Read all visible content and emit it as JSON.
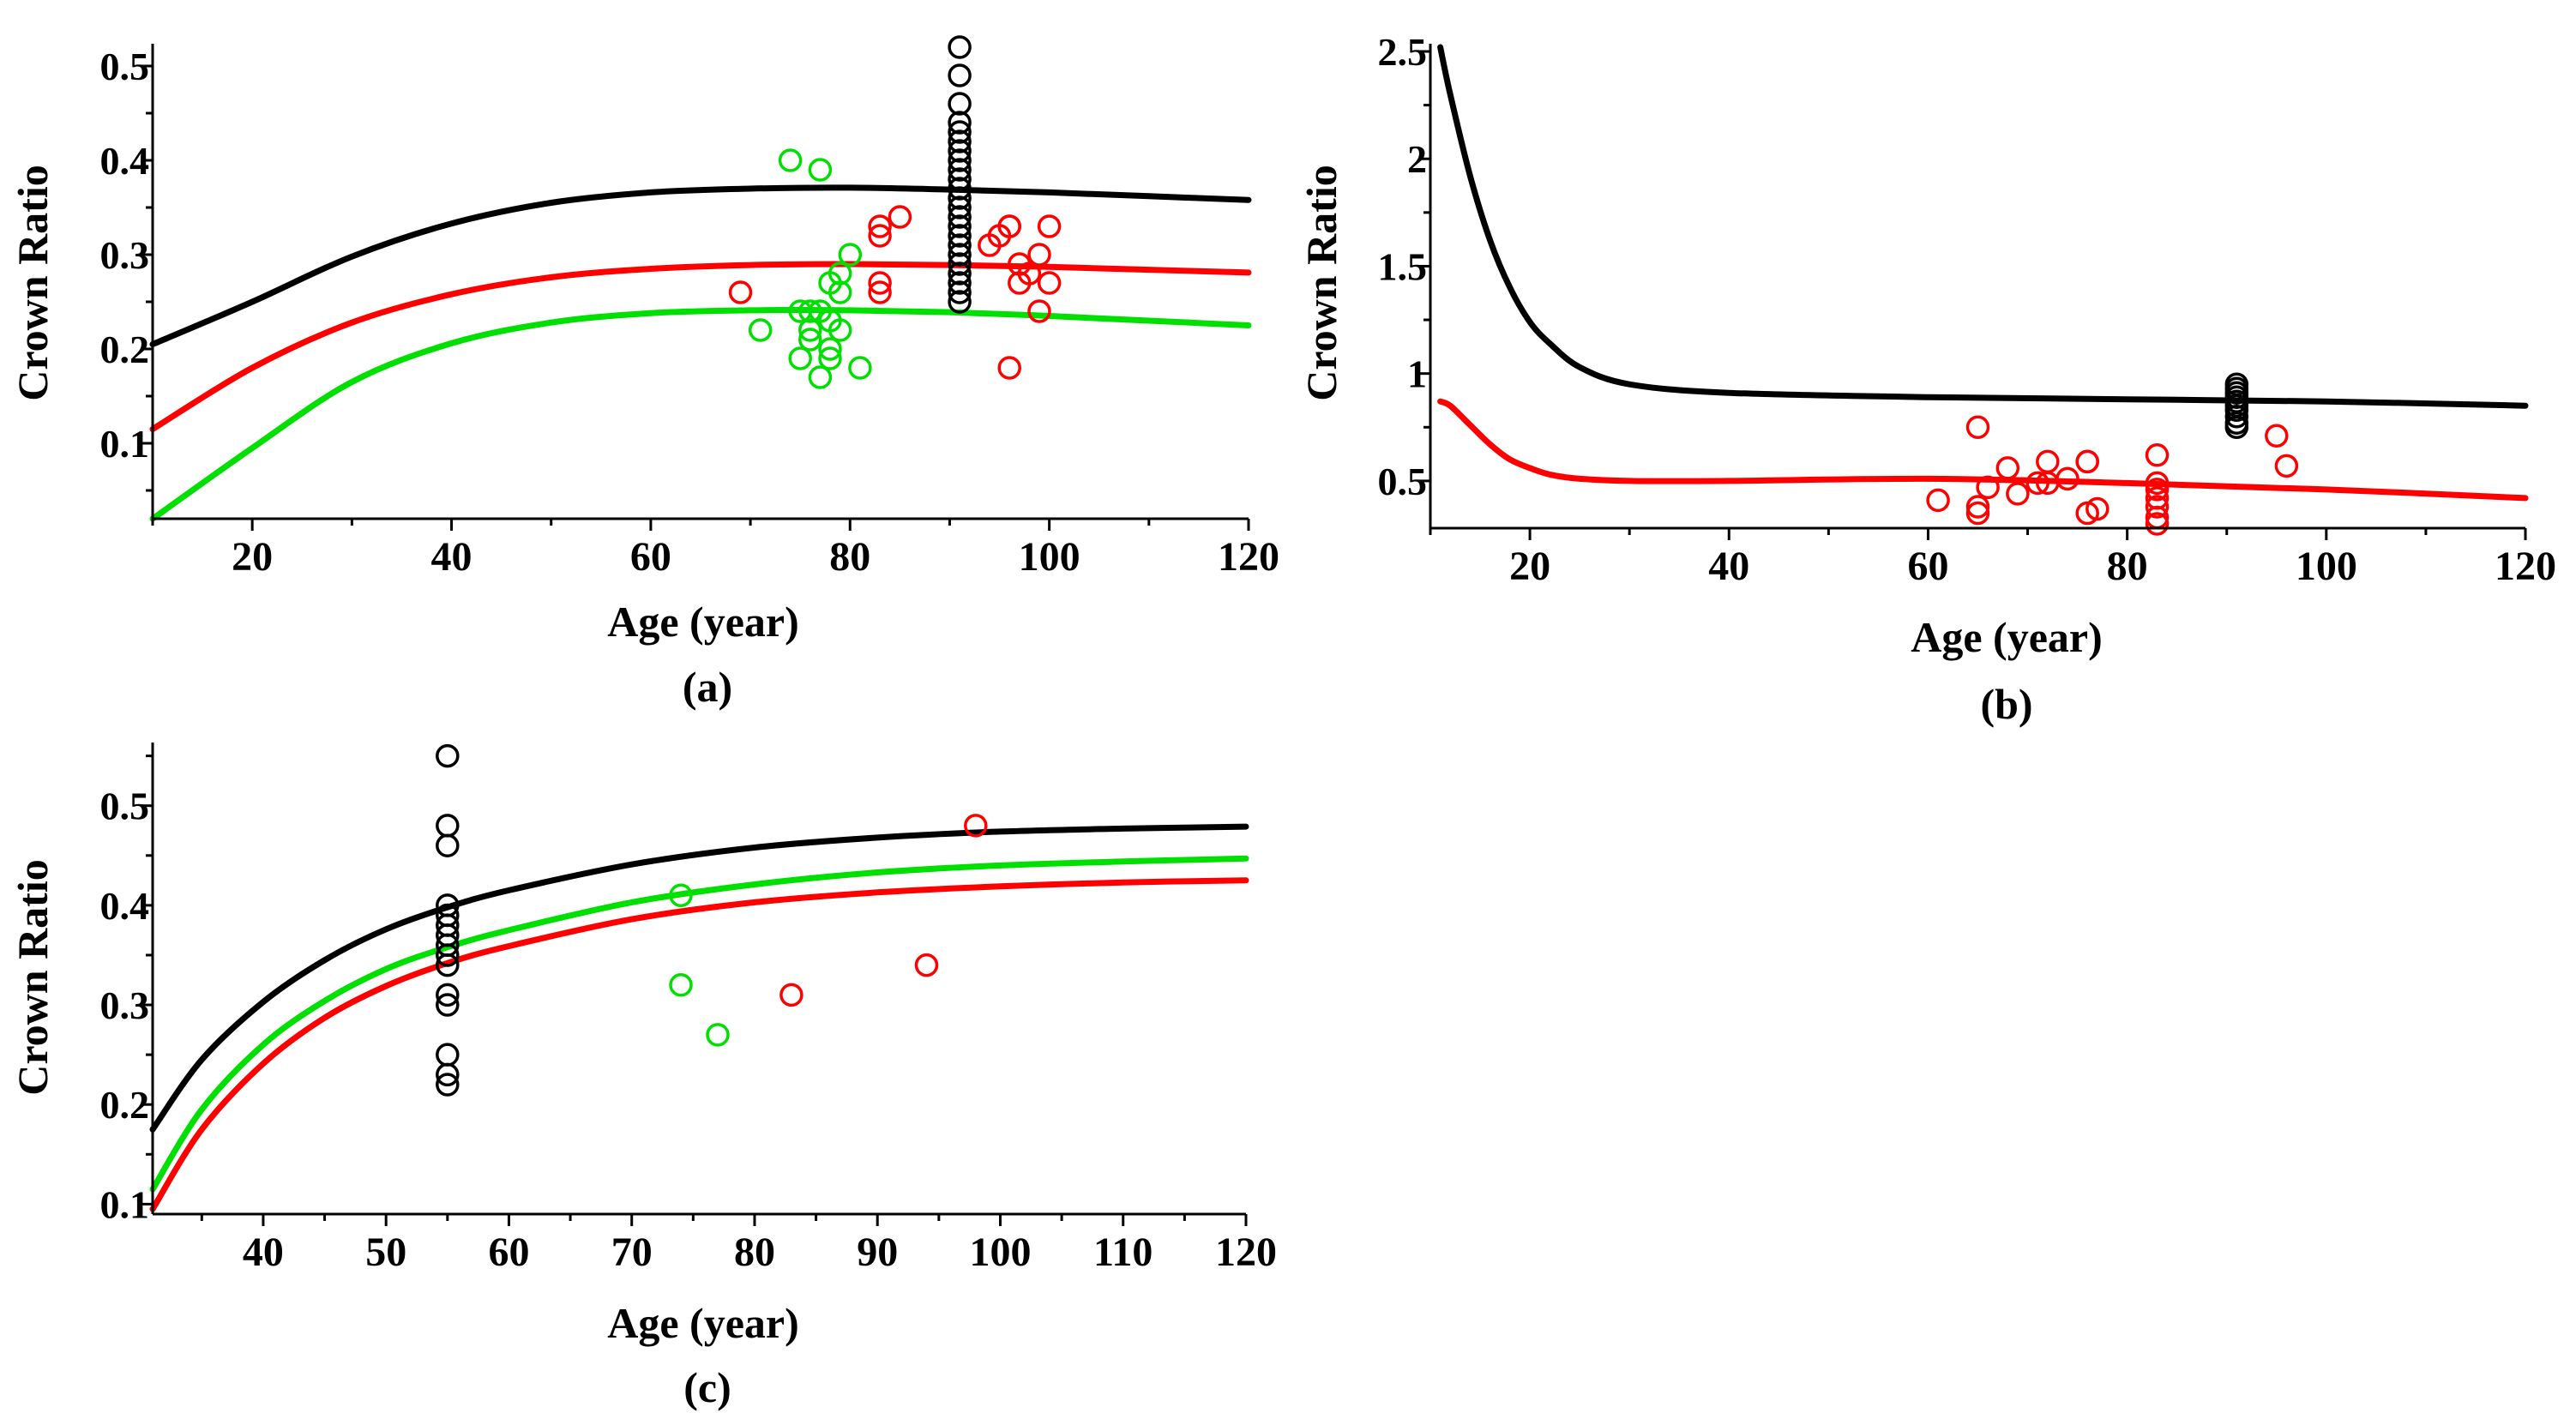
{
  "chart_data": [
    {
      "type": "scatter",
      "panel_label": "(a)",
      "xlabel": "Age (year)",
      "ylabel": "Crown Ratio",
      "xlim": [
        10,
        120
      ],
      "ylim": [
        0.02,
        0.52
      ],
      "x_ticks": [
        20,
        40,
        60,
        80,
        100,
        120
      ],
      "y_ticks": [
        0.1,
        0.2,
        0.3,
        0.4,
        0.5
      ],
      "y_tick_labels": [
        "0.1",
        "0.2",
        "0.3",
        "0.4",
        "0.5"
      ],
      "curves": [
        {
          "name": "black",
          "color": "#000000",
          "x": [
            10,
            20,
            30,
            40,
            50,
            60,
            70,
            80,
            90,
            100,
            110,
            120
          ],
          "y": [
            0.205,
            0.25,
            0.298,
            0.333,
            0.355,
            0.366,
            0.37,
            0.371,
            0.369,
            0.366,
            0.362,
            0.358
          ]
        },
        {
          "name": "red",
          "color": "#ff0000",
          "x": [
            10,
            20,
            30,
            40,
            50,
            60,
            70,
            80,
            90,
            100,
            110,
            120
          ],
          "y": [
            0.115,
            0.18,
            0.228,
            0.258,
            0.276,
            0.285,
            0.289,
            0.29,
            0.289,
            0.287,
            0.284,
            0.281
          ]
        },
        {
          "name": "green",
          "color": "#00e000",
          "x": [
            10,
            20,
            30,
            40,
            50,
            60,
            70,
            80,
            90,
            100,
            110,
            120
          ],
          "y": [
            0.02,
            0.095,
            0.165,
            0.206,
            0.228,
            0.238,
            0.241,
            0.241,
            0.239,
            0.235,
            0.23,
            0.225
          ]
        }
      ],
      "series": [
        {
          "name": "black",
          "color": "#000000",
          "points": [
            [
              91,
              0.52
            ],
            [
              91,
              0.49
            ],
            [
              91,
              0.46
            ],
            [
              91,
              0.44
            ],
            [
              91,
              0.43
            ],
            [
              91,
              0.42
            ],
            [
              91,
              0.41
            ],
            [
              91,
              0.4
            ],
            [
              91,
              0.39
            ],
            [
              91,
              0.38
            ],
            [
              91,
              0.37
            ],
            [
              91,
              0.36
            ],
            [
              91,
              0.35
            ],
            [
              91,
              0.34
            ],
            [
              91,
              0.33
            ],
            [
              91,
              0.32
            ],
            [
              91,
              0.31
            ],
            [
              91,
              0.3
            ],
            [
              91,
              0.29
            ],
            [
              91,
              0.28
            ],
            [
              91,
              0.27
            ],
            [
              91,
              0.26
            ],
            [
              91,
              0.25
            ]
          ]
        },
        {
          "name": "red",
          "color": "#ff0000",
          "points": [
            [
              69,
              0.26
            ],
            [
              83,
              0.33
            ],
            [
              83,
              0.32
            ],
            [
              85,
              0.34
            ],
            [
              83,
              0.27
            ],
            [
              83,
              0.26
            ],
            [
              94,
              0.31
            ],
            [
              95,
              0.32
            ],
            [
              96,
              0.33
            ],
            [
              96,
              0.33
            ],
            [
              100,
              0.33
            ],
            [
              97,
              0.29
            ],
            [
              98,
              0.28
            ],
            [
              99,
              0.3
            ],
            [
              97,
              0.27
            ],
            [
              100,
              0.27
            ],
            [
              99,
              0.24
            ],
            [
              96,
              0.18
            ]
          ]
        },
        {
          "name": "green",
          "color": "#00e000",
          "points": [
            [
              74,
              0.4
            ],
            [
              77,
              0.39
            ],
            [
              80,
              0.3
            ],
            [
              79,
              0.28
            ],
            [
              78,
              0.27
            ],
            [
              79,
              0.26
            ],
            [
              75,
              0.24
            ],
            [
              76,
              0.24
            ],
            [
              77,
              0.24
            ],
            [
              78,
              0.23
            ],
            [
              71,
              0.22
            ],
            [
              76,
              0.22
            ],
            [
              79,
              0.22
            ],
            [
              76,
              0.21
            ],
            [
              78,
              0.2
            ],
            [
              75,
              0.19
            ],
            [
              78,
              0.19
            ],
            [
              77,
              0.17
            ],
            [
              81,
              0.18
            ]
          ]
        }
      ]
    },
    {
      "type": "scatter",
      "panel_label": "(b)",
      "xlabel": "Age (year)",
      "ylabel": "Crown Ratio",
      "xlim": [
        10,
        120
      ],
      "ylim": [
        0.28,
        2.52
      ],
      "x_ticks": [
        20,
        40,
        60,
        80,
        100,
        120
      ],
      "y_ticks": [
        0.5,
        1,
        1.5,
        2,
        2.5
      ],
      "y_tick_labels": [
        "0.5",
        "1",
        "1.5",
        "2",
        "2.5"
      ],
      "curves": [
        {
          "name": "black",
          "color": "#000000",
          "x": [
            11,
            12,
            14,
            16,
            18,
            20,
            22,
            25,
            30,
            40,
            60,
            80,
            100,
            120
          ],
          "y": [
            2.52,
            2.3,
            1.92,
            1.62,
            1.4,
            1.24,
            1.14,
            1.03,
            0.95,
            0.91,
            0.89,
            0.88,
            0.87,
            0.85
          ]
        },
        {
          "name": "red",
          "color": "#ff0000",
          "x": [
            11,
            12,
            14,
            16,
            18,
            20,
            22,
            25,
            30,
            40,
            60,
            80,
            100,
            120
          ],
          "y": [
            0.87,
            0.85,
            0.76,
            0.67,
            0.6,
            0.56,
            0.53,
            0.51,
            0.5,
            0.5,
            0.51,
            0.49,
            0.46,
            0.42
          ]
        }
      ],
      "series": [
        {
          "name": "black",
          "color": "#000000",
          "points": [
            [
              91,
              0.95
            ],
            [
              91,
              0.93
            ],
            [
              91,
              0.91
            ],
            [
              91,
              0.89
            ],
            [
              91,
              0.87
            ],
            [
              91,
              0.85
            ],
            [
              91,
              0.83
            ],
            [
              91,
              0.8
            ],
            [
              91,
              0.77
            ],
            [
              91,
              0.75
            ]
          ]
        },
        {
          "name": "red",
          "color": "#ff0000",
          "points": [
            [
              61,
              0.41
            ],
            [
              65,
              0.75
            ],
            [
              65,
              0.38
            ],
            [
              65,
              0.35
            ],
            [
              66,
              0.47
            ],
            [
              68,
              0.56
            ],
            [
              69,
              0.44
            ],
            [
              71,
              0.49
            ],
            [
              72,
              0.59
            ],
            [
              72,
              0.49
            ],
            [
              74,
              0.51
            ],
            [
              76,
              0.59
            ],
            [
              76,
              0.59
            ],
            [
              76,
              0.35
            ],
            [
              77,
              0.37
            ],
            [
              83,
              0.62
            ],
            [
              83,
              0.49
            ],
            [
              83,
              0.46
            ],
            [
              83,
              0.42
            ],
            [
              83,
              0.38
            ],
            [
              83,
              0.33
            ],
            [
              83,
              0.3
            ],
            [
              95,
              0.71
            ],
            [
              96,
              0.57
            ]
          ]
        }
      ]
    },
    {
      "type": "scatter",
      "panel_label": "(c)",
      "xlabel": "Age (year)",
      "ylabel": "Crown Ratio",
      "xlim": [
        31,
        120
      ],
      "ylim": [
        0.09,
        0.56
      ],
      "x_ticks": [
        40,
        50,
        60,
        70,
        80,
        90,
        100,
        110,
        120
      ],
      "y_ticks": [
        0.1,
        0.2,
        0.3,
        0.4,
        0.5
      ],
      "y_tick_labels": [
        "0.1",
        "0.2",
        "0.3",
        "0.4",
        "0.5"
      ],
      "curves": [
        {
          "name": "black",
          "color": "#000000",
          "x": [
            31,
            35,
            40,
            45,
            50,
            55,
            60,
            70,
            80,
            90,
            100,
            110,
            120
          ],
          "y": [
            0.175,
            0.245,
            0.303,
            0.345,
            0.376,
            0.398,
            0.415,
            0.441,
            0.458,
            0.468,
            0.474,
            0.477,
            0.479
          ]
        },
        {
          "name": "green",
          "color": "#00e000",
          "x": [
            31,
            35,
            40,
            45,
            50,
            55,
            60,
            70,
            80,
            90,
            100,
            110,
            120
          ],
          "y": [
            0.115,
            0.195,
            0.26,
            0.304,
            0.336,
            0.358,
            0.375,
            0.403,
            0.421,
            0.433,
            0.44,
            0.444,
            0.447
          ]
        },
        {
          "name": "red",
          "color": "#ff0000",
          "x": [
            31,
            35,
            40,
            45,
            50,
            55,
            60,
            70,
            80,
            90,
            100,
            110,
            120
          ],
          "y": [
            0.095,
            0.175,
            0.241,
            0.287,
            0.319,
            0.342,
            0.359,
            0.386,
            0.403,
            0.413,
            0.419,
            0.423,
            0.425
          ]
        }
      ],
      "series": [
        {
          "name": "black",
          "color": "#000000",
          "points": [
            [
              55,
              0.55
            ],
            [
              55,
              0.48
            ],
            [
              55,
              0.46
            ],
            [
              55,
              0.4
            ],
            [
              55,
              0.39
            ],
            [
              55,
              0.38
            ],
            [
              55,
              0.37
            ],
            [
              55,
              0.36
            ],
            [
              55,
              0.35
            ],
            [
              55,
              0.34
            ],
            [
              55,
              0.31
            ],
            [
              55,
              0.3
            ],
            [
              55,
              0.25
            ],
            [
              55,
              0.23
            ],
            [
              55,
              0.22
            ]
          ]
        },
        {
          "name": "green",
          "color": "#00e000",
          "points": [
            [
              74,
              0.41
            ],
            [
              74,
              0.32
            ],
            [
              77,
              0.27
            ]
          ]
        },
        {
          "name": "red",
          "color": "#ff0000",
          "points": [
            [
              83,
              0.31
            ],
            [
              94,
              0.34
            ],
            [
              98,
              0.48
            ]
          ]
        }
      ]
    }
  ]
}
